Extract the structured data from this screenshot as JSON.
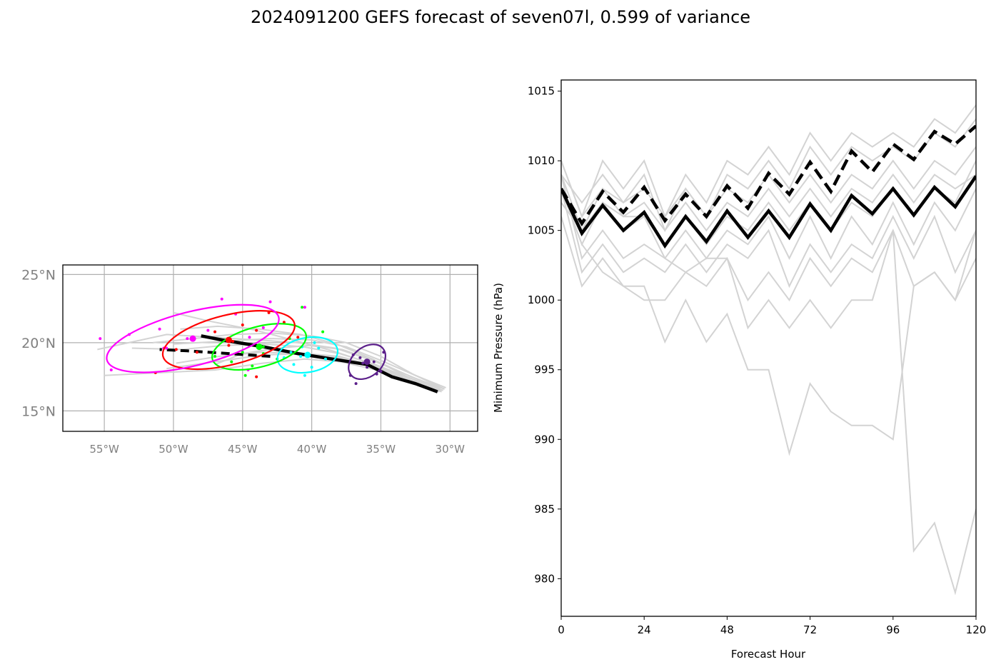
{
  "title": "2024091200 GEFS forecast of seven07l, 0.599 of variance",
  "colors": {
    "members": "#d3d3d3",
    "mean": "#000000",
    "grid": "#b0b0b0",
    "tick_label_map": "#808080",
    "ellipses": [
      "#5b1f8a",
      "#00ffff",
      "#00ff00",
      "#ff0000",
      "#ff00ff"
    ]
  },
  "chart_data": [
    {
      "type": "scatter",
      "name": "track map",
      "xlim": [
        -58,
        -28
      ],
      "ylim": [
        13.5,
        25.7
      ],
      "grid": true,
      "xticks": [
        -55,
        -50,
        -45,
        -40,
        -35,
        -30
      ],
      "xtick_labels": [
        "55°W",
        "50°W",
        "45°W",
        "40°W",
        "35°W",
        "30°W"
      ],
      "yticks": [
        15,
        20,
        25
      ],
      "ytick_labels": [
        "15°N",
        "20°N",
        "25°N"
      ],
      "member_tracks": [
        [
          [
            -30.3,
            16.7
          ],
          [
            -32.5,
            17.6
          ],
          [
            -35.0,
            18.7
          ],
          [
            -37.5,
            19.7
          ],
          [
            -40.0,
            20.2
          ],
          [
            -43.0,
            20.3
          ],
          [
            -46.5,
            20.1
          ],
          [
            -50.0,
            19.9
          ]
        ],
        [
          [
            -30.6,
            16.5
          ],
          [
            -33.0,
            17.3
          ],
          [
            -35.5,
            18.3
          ],
          [
            -38.0,
            19.0
          ],
          [
            -40.5,
            19.2
          ],
          [
            -43.5,
            19.1
          ],
          [
            -47.0,
            18.6
          ],
          [
            -50.5,
            18.1
          ]
        ],
        [
          [
            -30.8,
            16.4
          ],
          [
            -33.2,
            17.4
          ],
          [
            -35.8,
            18.5
          ],
          [
            -38.5,
            19.4
          ],
          [
            -41.0,
            20.1
          ],
          [
            -44.0,
            20.9
          ],
          [
            -47.5,
            21.6
          ],
          [
            -50.0,
            22.2
          ]
        ],
        [
          [
            -30.4,
            16.6
          ],
          [
            -32.8,
            17.5
          ],
          [
            -35.2,
            18.6
          ],
          [
            -37.8,
            19.5
          ],
          [
            -40.2,
            19.8
          ],
          [
            -42.5,
            19.6
          ],
          [
            -45.0,
            19.2
          ],
          [
            -47.0,
            18.4
          ]
        ],
        [
          [
            -30.5,
            16.5
          ],
          [
            -32.9,
            17.2
          ],
          [
            -35.3,
            18.0
          ],
          [
            -37.9,
            18.6
          ],
          [
            -40.5,
            18.8
          ],
          [
            -43.5,
            18.5
          ],
          [
            -47.0,
            18.0
          ],
          [
            -51.0,
            17.8
          ],
          [
            -55.0,
            17.6
          ]
        ],
        [
          [
            -30.7,
            16.5
          ],
          [
            -33.1,
            17.5
          ],
          [
            -35.6,
            18.8
          ],
          [
            -38.2,
            19.9
          ],
          [
            -40.8,
            20.6
          ],
          [
            -43.8,
            21.0
          ],
          [
            -46.8,
            21.2
          ],
          [
            -49.5,
            21.0
          ]
        ],
        [
          [
            -30.4,
            16.6
          ],
          [
            -32.7,
            17.7
          ],
          [
            -35.0,
            19.0
          ],
          [
            -37.5,
            20.0
          ],
          [
            -40.0,
            20.5
          ],
          [
            -42.8,
            20.7
          ],
          [
            -45.8,
            20.6
          ],
          [
            -48.5,
            20.3
          ],
          [
            -51.5,
            20.0
          ]
        ],
        [
          [
            -30.6,
            16.4
          ],
          [
            -33.0,
            17.2
          ],
          [
            -35.5,
            18.2
          ],
          [
            -38.0,
            18.9
          ],
          [
            -40.7,
            19.2
          ],
          [
            -43.7,
            19.3
          ],
          [
            -46.7,
            19.0
          ],
          [
            -49.8,
            18.5
          ]
        ],
        [
          [
            -30.5,
            16.5
          ],
          [
            -32.9,
            17.4
          ],
          [
            -35.4,
            18.4
          ],
          [
            -38.0,
            19.2
          ],
          [
            -40.6,
            19.7
          ],
          [
            -43.4,
            19.9
          ],
          [
            -46.4,
            19.8
          ],
          [
            -49.4,
            19.5
          ],
          [
            -53.0,
            19.6
          ]
        ],
        [
          [
            -30.7,
            16.6
          ],
          [
            -33.0,
            17.6
          ],
          [
            -35.6,
            18.7
          ],
          [
            -38.3,
            19.6
          ],
          [
            -41.0,
            20.0
          ],
          [
            -44.0,
            20.2
          ],
          [
            -47.2,
            20.4
          ],
          [
            -50.5,
            20.6
          ],
          [
            -55.5,
            19.5
          ]
        ]
      ],
      "mean_track": [
        [
          -30.9,
          16.4
        ],
        [
          -32.5,
          17.0
        ],
        [
          -34.2,
          17.5
        ],
        [
          -36.0,
          18.4
        ],
        [
          -38.5,
          18.8
        ],
        [
          -41.0,
          19.2
        ],
        [
          -43.5,
          19.7
        ],
        [
          -46.5,
          20.2
        ],
        [
          -48.0,
          20.5
        ]
      ],
      "mean_track_dashed": [
        [
          -43.0,
          19.0
        ],
        [
          -46.0,
          19.2
        ],
        [
          -49.0,
          19.4
        ],
        [
          -51.0,
          19.5
        ]
      ],
      "ellipses": [
        {
          "center": [
            -36.0,
            18.6
          ],
          "semi_major_deg": 1.5,
          "semi_minor_deg": 1.05,
          "rotation_deg": 40
        },
        {
          "center": [
            -40.3,
            19.1
          ],
          "semi_major_deg": 2.2,
          "semi_minor_deg": 1.25,
          "rotation_deg": 10
        },
        {
          "center": [
            -43.8,
            19.7
          ],
          "semi_major_deg": 3.5,
          "semi_minor_deg": 1.45,
          "rotation_deg": 15
        },
        {
          "center": [
            -46.0,
            20.2
          ],
          "semi_major_deg": 4.9,
          "semi_minor_deg": 1.8,
          "rotation_deg": 14
        },
        {
          "center": [
            -48.6,
            20.3
          ],
          "semi_major_deg": 6.4,
          "semi_minor_deg": 1.95,
          "rotation_deg": 14
        }
      ],
      "points": [
        {
          "color_index": 0,
          "pts": [
            [
              -37.2,
              17.6
            ],
            [
              -36.8,
              17.0
            ],
            [
              -36.5,
              18.9
            ],
            [
              -36.0,
              18.2
            ],
            [
              -35.5,
              18.6
            ],
            [
              -35.0,
              17.9
            ],
            [
              -34.8,
              19.3
            ],
            [
              -37.0,
              19.1
            ],
            [
              -35.3,
              17.7
            ],
            [
              -36.3,
              18.5
            ]
          ]
        },
        {
          "color_index": 1,
          "pts": [
            [
              -42.0,
              18.9
            ],
            [
              -41.3,
              18.4
            ],
            [
              -40.7,
              19.7
            ],
            [
              -40.0,
              18.2
            ],
            [
              -39.5,
              19.6
            ],
            [
              -39.0,
              18.8
            ],
            [
              -40.5,
              17.6
            ],
            [
              -41.5,
              19.3
            ],
            [
              -39.8,
              20.0
            ],
            [
              -40.8,
              19.0
            ]
          ]
        },
        {
          "color_index": 2,
          "pts": [
            [
              -47.0,
              19.0
            ],
            [
              -45.8,
              18.6
            ],
            [
              -45.0,
              19.3
            ],
            [
              -44.3,
              18.3
            ],
            [
              -43.5,
              19.7
            ],
            [
              -42.5,
              18.8
            ],
            [
              -41.6,
              20.3
            ],
            [
              -40.7,
              22.6
            ],
            [
              -39.2,
              20.8
            ],
            [
              -44.8,
              17.6
            ],
            [
              -43.5,
              19.2
            ]
          ]
        },
        {
          "color_index": 3,
          "pts": [
            [
              -51.3,
              17.8
            ],
            [
              -49.8,
              19.5
            ],
            [
              -48.3,
              19.3
            ],
            [
              -47.0,
              20.8
            ],
            [
              -46.0,
              19.8
            ],
            [
              -45.0,
              21.3
            ],
            [
              -44.0,
              20.9
            ],
            [
              -43.1,
              22.2
            ],
            [
              -42.0,
              21.5
            ],
            [
              -41.0,
              20.4
            ],
            [
              -44.0,
              17.5
            ],
            [
              -45.7,
              20.1
            ]
          ]
        },
        {
          "color_index": 4,
          "pts": [
            [
              -55.3,
              20.3
            ],
            [
              -54.5,
              18.0
            ],
            [
              -53.2,
              20.6
            ],
            [
              -51.0,
              21.0
            ],
            [
              -50.5,
              19.6
            ],
            [
              -49.0,
              20.3
            ],
            [
              -47.5,
              20.9
            ],
            [
              -46.5,
              23.2
            ],
            [
              -45.5,
              22.1
            ],
            [
              -44.5,
              20.4
            ],
            [
              -43.5,
              21.1
            ],
            [
              -43.0,
              23.0
            ],
            [
              -40.5,
              22.6
            ],
            [
              -44.6,
              18.0
            ],
            [
              -50.7,
              19.6
            ]
          ]
        }
      ]
    },
    {
      "type": "line",
      "name": "intensity",
      "xlabel": "Forecast Hour",
      "ylabel": "Minimum Pressure (hPa)",
      "xlim": [
        0,
        120
      ],
      "ylim": [
        977.3,
        1015.8
      ],
      "xticks": [
        0,
        24,
        48,
        72,
        96,
        120
      ],
      "yticks": [
        980,
        985,
        990,
        995,
        1000,
        1005,
        1010,
        1015
      ],
      "x": [
        0,
        6,
        12,
        18,
        24,
        30,
        36,
        42,
        48,
        54,
        60,
        66,
        72,
        78,
        84,
        90,
        96,
        102,
        108,
        114,
        120
      ],
      "series": [
        {
          "role": "member",
          "values": [
            1007,
            1005,
            1007,
            1005,
            1006,
            1003,
            1002,
            1003,
            1003,
            998,
            1000,
            998,
            1000,
            998,
            1000,
            1000,
            1005,
            982,
            984,
            979,
            985
          ]
        },
        {
          "role": "member",
          "values": [
            1008,
            1004,
            1002,
            1001,
            1001,
            997,
            1000,
            997,
            999,
            995,
            995,
            989,
            994,
            992,
            991,
            991,
            990,
            1001,
            1002,
            1000,
            1003
          ]
        },
        {
          "role": "member",
          "values": [
            1006,
            1001,
            1003,
            1001,
            1000,
            1000,
            1002,
            1001,
            1003,
            1000,
            1002,
            1000,
            1003,
            1001,
            1003,
            1002,
            1005,
            1001,
            1002,
            1000,
            1005
          ]
        },
        {
          "role": "member",
          "values": [
            1008,
            1002,
            1004,
            1002,
            1003,
            1002,
            1004,
            1002,
            1004,
            1003,
            1005,
            1001,
            1004,
            1002,
            1004,
            1003,
            1006,
            1003,
            1006,
            1002,
            1005
          ]
        },
        {
          "role": "member",
          "values": [
            1009,
            1003,
            1005,
            1003,
            1004,
            1003,
            1005,
            1003,
            1005,
            1004,
            1006,
            1003,
            1006,
            1003,
            1006,
            1004,
            1007,
            1004,
            1007,
            1005,
            1008
          ]
        },
        {
          "role": "member",
          "values": [
            1010,
            1006,
            1008,
            1006,
            1007,
            1005,
            1007,
            1005,
            1007,
            1006,
            1008,
            1006,
            1008,
            1006,
            1008,
            1007,
            1009,
            1007,
            1009,
            1008,
            1009
          ]
        },
        {
          "role": "member",
          "values": [
            1009,
            1007,
            1009,
            1007,
            1008,
            1006,
            1008,
            1006,
            1008,
            1007,
            1009,
            1007,
            1009,
            1007,
            1009,
            1008,
            1010,
            1008,
            1010,
            1009,
            1011
          ]
        },
        {
          "role": "member",
          "values": [
            1008,
            1004,
            1007,
            1006,
            1006,
            1004,
            1006,
            1004,
            1006,
            1005,
            1007,
            1005,
            1007,
            1005,
            1007,
            1006,
            1008,
            1006,
            1008,
            1007,
            1010
          ]
        },
        {
          "role": "member",
          "values": [
            1010,
            1006,
            1010,
            1008,
            1010,
            1006,
            1009,
            1007,
            1010,
            1009,
            1011,
            1009,
            1012,
            1010,
            1012,
            1011,
            1012,
            1011,
            1013,
            1012,
            1014
          ]
        },
        {
          "role": "member",
          "values": [
            1009,
            1005,
            1008,
            1007,
            1009,
            1005,
            1008,
            1006,
            1009,
            1008,
            1010,
            1008,
            1011,
            1009,
            1011,
            1010,
            1011,
            1010,
            1012,
            1011,
            1013
          ]
        },
        {
          "role": "mean_dashed",
          "values": [
            1008,
            1005.5,
            1007.8,
            1006.3,
            1008.1,
            1005.7,
            1007.6,
            1006.0,
            1008.2,
            1006.6,
            1009.1,
            1007.6,
            1009.9,
            1007.8,
            1010.7,
            1009.2,
            1011.2,
            1010.1,
            1012.1,
            1011.2,
            1012.5
          ]
        },
        {
          "role": "mean",
          "values": [
            1008,
            1004.8,
            1006.8,
            1005.0,
            1006.3,
            1003.9,
            1006.0,
            1004.2,
            1006.4,
            1004.5,
            1006.4,
            1004.5,
            1006.9,
            1005.0,
            1007.5,
            1006.2,
            1008.0,
            1006.1,
            1008.1,
            1006.7,
            1008.9
          ]
        }
      ]
    }
  ]
}
